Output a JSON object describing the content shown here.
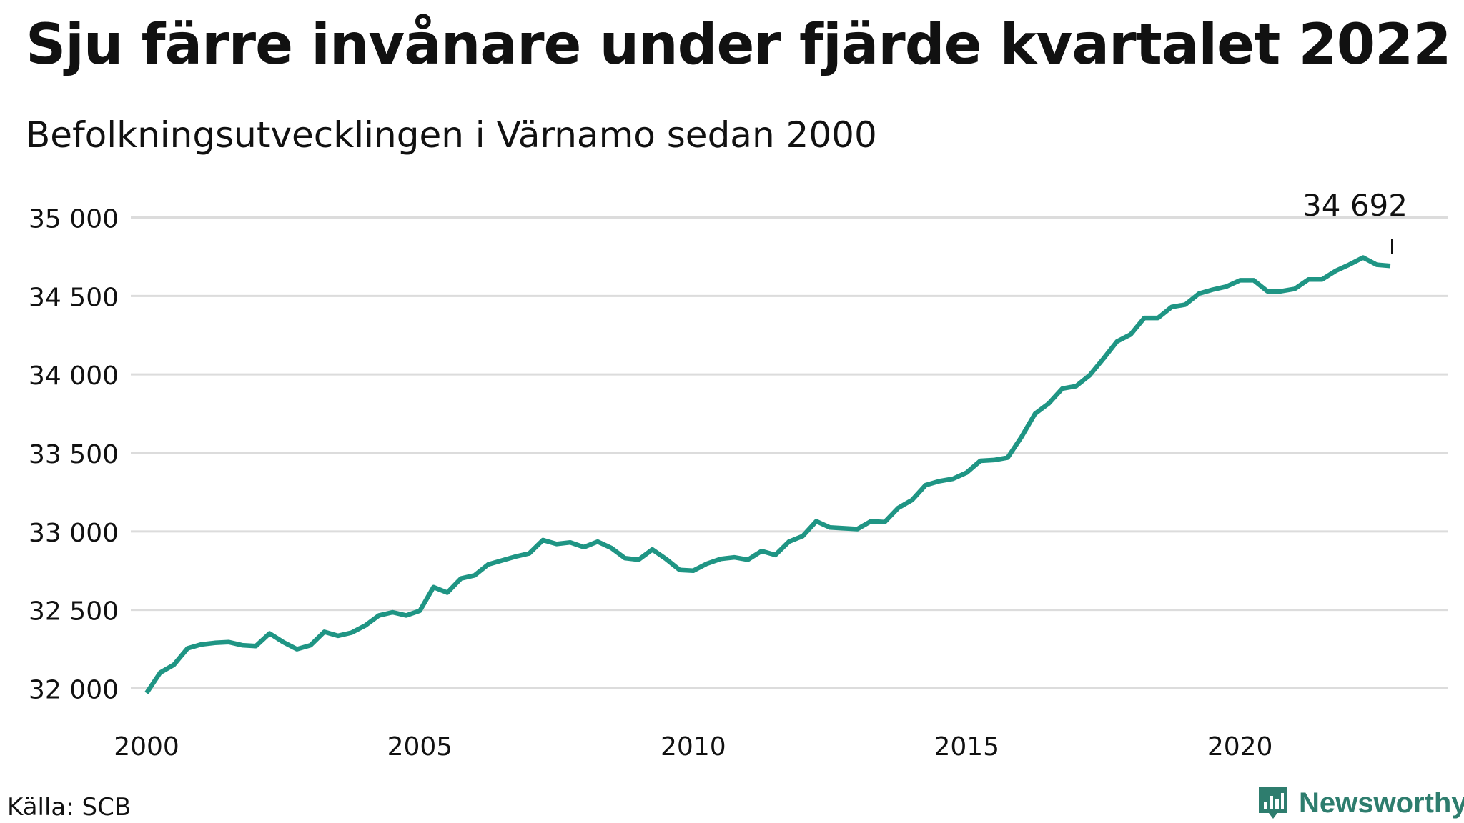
{
  "title": "Sju färre invånare under fjärde kvartalet 2022",
  "subtitle": "Befolkningsutvecklingen i Värnamo sedan 2000",
  "source": "Källa: SCB",
  "brand": {
    "name": "Newsworthy",
    "color": "#2e7d6e",
    "icon": "bar-chart-logo-icon"
  },
  "chart_data": {
    "type": "line",
    "title": "Sju färre invånare under fjärde kvartalet 2022",
    "subtitle": "Befolkningsutvecklingen i Värnamo sedan 2000",
    "xlabel": "",
    "ylabel": "",
    "line_color": "#1f9584",
    "grid": true,
    "xlim": [
      2000.0,
      2023.5
    ],
    "ylim": [
      31850,
      35050
    ],
    "yticks": [
      32000,
      32500,
      33000,
      33500,
      34000,
      34500,
      35000
    ],
    "ytick_labels": [
      "32 000",
      "32 500",
      "33 000",
      "33 500",
      "34 000",
      "34 500",
      "35 000"
    ],
    "xticks": [
      2000,
      2005,
      2010,
      2015,
      2020
    ],
    "xtick_labels": [
      "2000",
      "2005",
      "2010",
      "2015",
      "2020"
    ],
    "annotation": {
      "label": "34 692",
      "x": 2022.75,
      "y": 34692
    },
    "series": [
      {
        "x": [
          2000.0,
          2000.25,
          2000.5,
          2000.75,
          2001.0,
          2001.25,
          2001.5,
          2001.75,
          2002.0,
          2002.25,
          2002.5,
          2002.75,
          2003.0,
          2003.25,
          2003.5,
          2003.75,
          2004.0,
          2004.25,
          2004.5,
          2004.75,
          2005.0,
          2005.25,
          2005.5,
          2005.75,
          2006.0,
          2006.25,
          2006.5,
          2006.75,
          2007.0,
          2007.25,
          2007.5,
          2007.75,
          2008.0,
          2008.25,
          2008.5,
          2008.75,
          2009.0,
          2009.25,
          2009.5,
          2009.75,
          2010.0,
          2010.25,
          2010.5,
          2010.75,
          2011.0,
          2011.25,
          2011.5,
          2011.75,
          2012.0,
          2012.25,
          2012.5,
          2012.75,
          2013.0,
          2013.25,
          2013.5,
          2013.75,
          2014.0,
          2014.25,
          2014.5,
          2014.75,
          2015.0,
          2015.25,
          2015.5,
          2015.75,
          2016.0,
          2016.25,
          2016.5,
          2016.75,
          2017.0,
          2017.25,
          2017.5,
          2017.75,
          2018.0,
          2018.25,
          2018.5,
          2018.75,
          2019.0,
          2019.25,
          2019.5,
          2019.75,
          2020.0,
          2020.25,
          2020.5,
          2020.75,
          2021.0,
          2021.25,
          2021.5,
          2021.75,
          2022.0,
          2022.25,
          2022.5,
          2022.75
        ],
        "values": [
          31970,
          32100,
          32150,
          32255,
          32280,
          32290,
          32295,
          32275,
          32270,
          32350,
          32295,
          32250,
          32275,
          32360,
          32335,
          32355,
          32400,
          32465,
          32485,
          32465,
          32495,
          32645,
          32610,
          32700,
          32720,
          32790,
          32815,
          32840,
          32860,
          32945,
          32920,
          32930,
          32900,
          32935,
          32895,
          32830,
          32820,
          32885,
          32825,
          32755,
          32750,
          32795,
          32825,
          32835,
          32820,
          32875,
          32850,
          32935,
          32970,
          33065,
          33025,
          33020,
          33015,
          33065,
          33060,
          33150,
          33200,
          33295,
          33320,
          33335,
          33375,
          33450,
          33455,
          33470,
          33600,
          33750,
          33815,
          33910,
          33925,
          33995,
          34100,
          34210,
          34255,
          34360,
          34360,
          34430,
          34445,
          34515,
          34540,
          34560,
          34600,
          34600,
          34530,
          34530,
          34545,
          34605,
          34605,
          34660,
          34700,
          34745,
          34699,
          34692
        ]
      }
    ]
  }
}
